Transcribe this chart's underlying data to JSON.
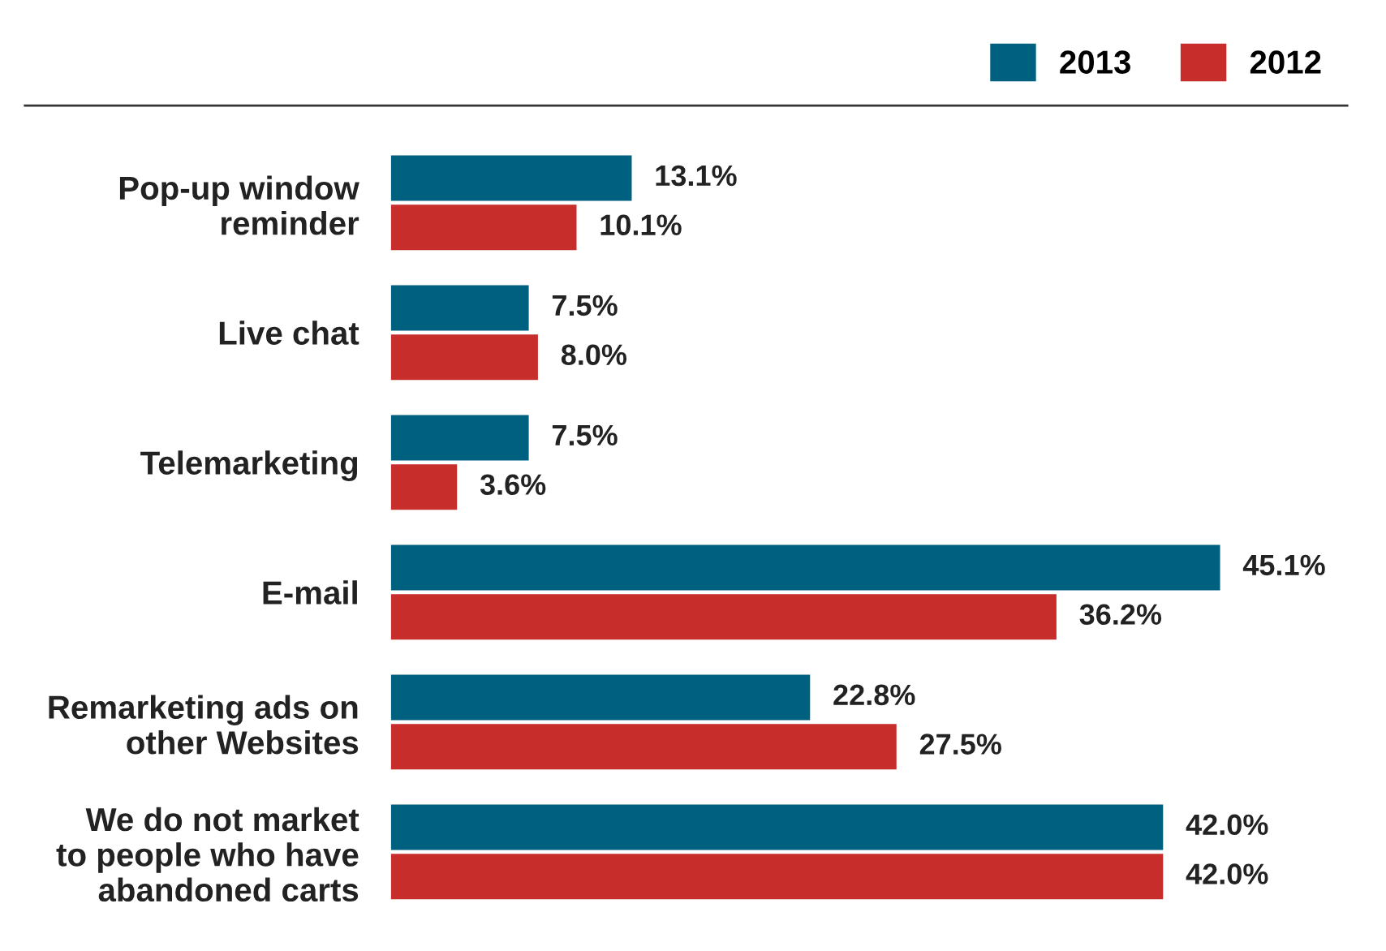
{
  "chart_data": {
    "type": "bar",
    "orientation": "horizontal",
    "categories": [
      "Pop-up window\nreminder",
      "Live chat",
      "Telemarketing",
      "E-mail",
      "Remarketing ads on\nother Websites",
      "We do not market\nto people who have\nabandoned carts"
    ],
    "series": [
      {
        "name": "2013",
        "color": "#00607f",
        "values": [
          13.1,
          7.5,
          7.5,
          45.1,
          22.8,
          42.0
        ],
        "value_labels": [
          "13.1%",
          "7.5%",
          "7.5%",
          "45.1%",
          "22.8%",
          "42.0%"
        ]
      },
      {
        "name": "2012",
        "color": "#c62d2b",
        "values": [
          10.1,
          8.0,
          3.6,
          36.2,
          27.5,
          42.0
        ],
        "value_labels": [
          "10.1%",
          "8.0%",
          "3.6%",
          "36.2%",
          "27.5%",
          "42.0%"
        ]
      }
    ],
    "legend": "top right",
    "grid": false
  }
}
